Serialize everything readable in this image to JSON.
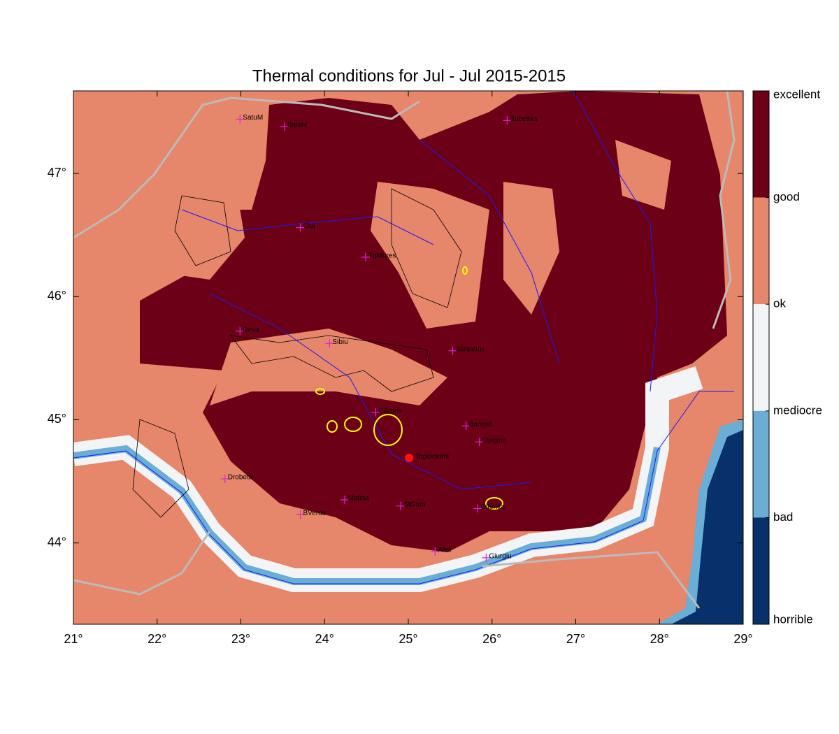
{
  "title": "Thermal conditions for Jul - Jul  2015-2015",
  "xlim": [
    21,
    29
  ],
  "ylim": [
    43.34,
    47.67
  ],
  "xticks": [
    {
      "value": 21,
      "label": "21°"
    },
    {
      "value": 22,
      "label": "22°"
    },
    {
      "value": 23,
      "label": "23°"
    },
    {
      "value": 24,
      "label": "24°"
    },
    {
      "value": 25,
      "label": "25°"
    },
    {
      "value": 26,
      "label": "26°"
    },
    {
      "value": 27,
      "label": "27°"
    },
    {
      "value": 28,
      "label": "28°"
    },
    {
      "value": 29,
      "label": "29°"
    }
  ],
  "yticks": [
    {
      "value": 44,
      "label": "44°"
    },
    {
      "value": 45,
      "label": "45°"
    },
    {
      "value": 46,
      "label": "46°"
    },
    {
      "value": 47,
      "label": "47°"
    }
  ],
  "colorbar": {
    "labels": [
      "excellent",
      "good",
      "ok",
      "mediocre",
      "bad",
      "horrible"
    ],
    "colors": [
      "#6b0016",
      "#e6866a",
      "#f3f4f6",
      "#6aaed6",
      "#08306b"
    ]
  },
  "cities": [
    {
      "name": "SatuM",
      "lon": 22.99,
      "lat": 47.44
    },
    {
      "name": "BaiaM",
      "lon": 23.52,
      "lat": 47.38
    },
    {
      "name": "Suceava",
      "lon": 26.18,
      "lat": 47.43
    },
    {
      "name": "Cluj",
      "lon": 23.71,
      "lat": 46.56
    },
    {
      "name": "TgMures",
      "lon": 24.49,
      "lat": 46.32
    },
    {
      "name": "Deva",
      "lon": 22.99,
      "lat": 45.72
    },
    {
      "name": "Sibiu",
      "lon": 24.06,
      "lat": 45.62
    },
    {
      "name": "Sanpetru",
      "lon": 25.53,
      "lat": 45.56
    },
    {
      "name": "CArges",
      "lon": 24.61,
      "lat": 45.06
    },
    {
      "name": "Banesti",
      "lon": 25.69,
      "lat": 44.95
    },
    {
      "name": "Strejnic",
      "lon": 25.85,
      "lat": 44.82
    },
    {
      "name": "Drobeta",
      "lon": 22.81,
      "lat": 44.52
    },
    {
      "name": "Slatina",
      "lon": 24.24,
      "lat": 44.35
    },
    {
      "name": "StGum",
      "lon": 24.91,
      "lat": 44.3
    },
    {
      "name": "Oltenita",
      "lon": 25.83,
      "lat": 44.28
    },
    {
      "name": "BVerde",
      "lon": 23.71,
      "lat": 44.23
    },
    {
      "name": "Alex",
      "lon": 25.32,
      "lat": 43.93
    },
    {
      "name": "Giurgiu",
      "lon": 25.93,
      "lat": 43.88
    }
  ],
  "site": {
    "name": "Topoloveni",
    "lon": 25.01,
    "lat": 44.69
  }
}
